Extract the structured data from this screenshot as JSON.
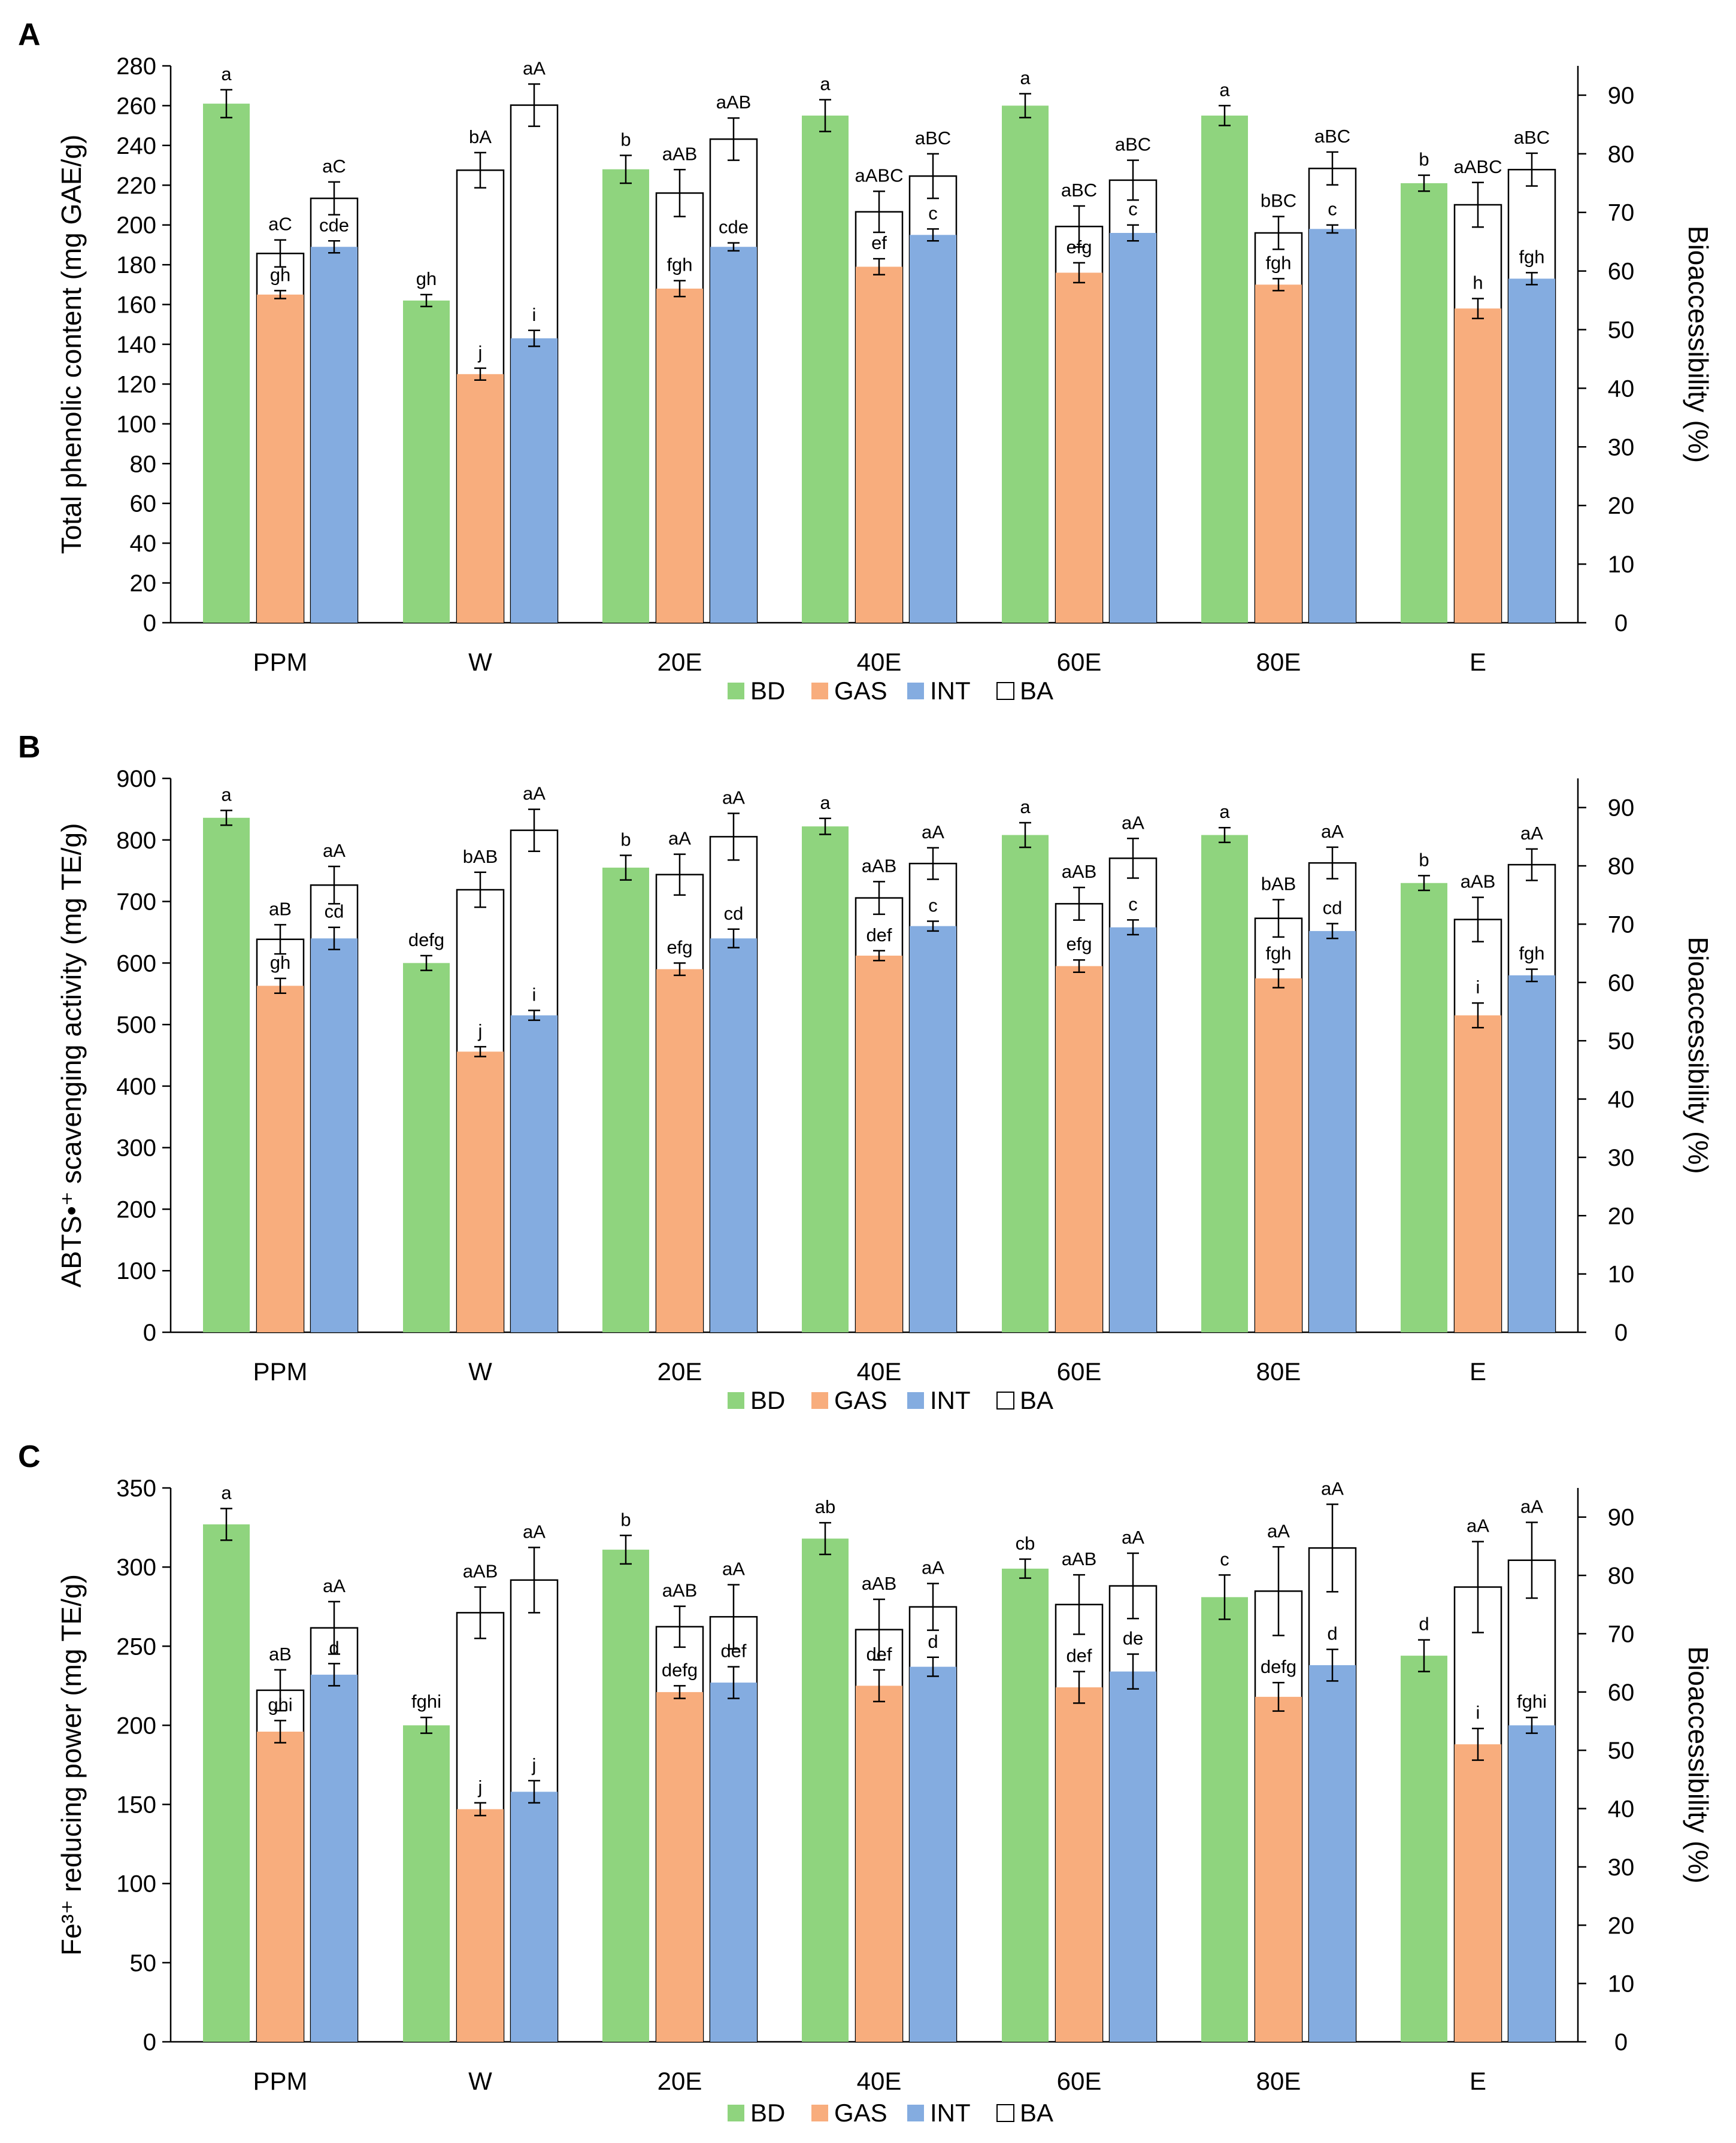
{
  "colors": {
    "BD": "#8fd47e",
    "GAS": "#f8ad7d",
    "INT": "#84ace0",
    "BA": "#ffffff"
  },
  "legend": [
    "BD",
    "GAS",
    "INT",
    "BA"
  ],
  "chart_data": [
    {
      "type": "bar",
      "panel": "A",
      "ylabel": "Total phenolic content (mg GAE/g)",
      "y2label": "Bioaccessibility (%)",
      "categories": [
        "PPM",
        "W",
        "20E",
        "40E",
        "60E",
        "80E",
        "E"
      ],
      "ylim": [
        0,
        280
      ],
      "yticks": [
        "0",
        "20",
        "40",
        "60",
        "80",
        "100",
        "120",
        "140",
        "160",
        "180",
        "200",
        "220",
        "240",
        "260",
        "280"
      ],
      "y2lim": [
        0,
        95
      ],
      "y2ticks": [
        "0",
        "10",
        "20",
        "30",
        "40",
        "50",
        "60",
        "70",
        "80",
        "90"
      ],
      "series": [
        {
          "name": "BD",
          "axis": "left",
          "values": [
            261,
            162,
            228,
            255,
            260,
            255,
            221
          ],
          "errors": [
            7,
            3,
            7,
            8,
            6,
            5,
            4
          ],
          "labels": [
            "a",
            "gh",
            "b",
            "a",
            "a",
            "a",
            "b"
          ]
        },
        {
          "name": "GAS",
          "axis": "left",
          "values": [
            165,
            125,
            168,
            179,
            176,
            170,
            158
          ],
          "errors": [
            2,
            3,
            4,
            4,
            5,
            3,
            5
          ],
          "labels": [
            "gh",
            "j",
            "fgh",
            "ef",
            "efg",
            "fgh",
            "h"
          ]
        },
        {
          "name": "INT",
          "axis": "left",
          "values": [
            189,
            143,
            189,
            195,
            196,
            198,
            173
          ],
          "errors": [
            3,
            4,
            2,
            3,
            4,
            2,
            3
          ],
          "labels": [
            "cde",
            "i",
            "cde",
            "c",
            "c",
            "c",
            "fgh"
          ]
        },
        {
          "name": "BA (GAS)",
          "axis": "right",
          "values": [
            63,
            77.2,
            73.3,
            70.1,
            67.6,
            66.5,
            71.3
          ],
          "errors": [
            2.3,
            3,
            4,
            3.5,
            3.5,
            2.8,
            3.8
          ],
          "labels": [
            "aC",
            "bA",
            "aAB",
            "aABC",
            "aBC",
            "bBC",
            "aABC"
          ]
        },
        {
          "name": "BA (INT)",
          "axis": "right",
          "values": [
            72.4,
            88.3,
            82.5,
            76.2,
            75.5,
            77.5,
            77.3
          ],
          "errors": [
            2.8,
            3.6,
            3.6,
            3.8,
            3.4,
            2.8,
            2.8
          ],
          "labels": [
            "aC",
            "aA",
            "aAB",
            "aBC",
            "aBC",
            "aBC",
            "aBC"
          ]
        }
      ]
    },
    {
      "type": "bar",
      "panel": "B",
      "ylabel": "ABTS•⁺ scavenging activity  (mg TE/g)",
      "y2label": "Bioaccessibility (%)",
      "categories": [
        "PPM",
        "W",
        "20E",
        "40E",
        "60E",
        "80E",
        "E"
      ],
      "ylim": [
        0,
        900
      ],
      "yticks": [
        "0",
        "100",
        "200",
        "300",
        "400",
        "500",
        "600",
        "700",
        "800",
        "900"
      ],
      "y2lim": [
        0,
        95
      ],
      "y2ticks": [
        "0",
        "10",
        "20",
        "30",
        "40",
        "50",
        "60",
        "70",
        "80",
        "90"
      ],
      "series": [
        {
          "name": "BD",
          "axis": "left",
          "values": [
            836,
            600,
            755,
            822,
            808,
            808,
            730
          ],
          "errors": [
            12,
            12,
            20,
            13,
            20,
            12,
            12
          ],
          "labels": [
            "a",
            "defg",
            "b",
            "a",
            "a",
            "a",
            "b"
          ]
        },
        {
          "name": "GAS",
          "axis": "left",
          "values": [
            563,
            456,
            590,
            612,
            595,
            575,
            515
          ],
          "errors": [
            12,
            8,
            10,
            8,
            10,
            15,
            20
          ],
          "labels": [
            "gh",
            "j",
            "efg",
            "def",
            "efg",
            "fgh",
            "i"
          ]
        },
        {
          "name": "INT",
          "axis": "left",
          "values": [
            640,
            515,
            640,
            660,
            658,
            652,
            580
          ],
          "errors": [
            18,
            8,
            15,
            8,
            12,
            12,
            10
          ],
          "labels": [
            "cd",
            "i",
            "cd",
            "c",
            "c",
            "cd",
            "fgh"
          ]
        },
        {
          "name": "BA (GAS)",
          "axis": "right",
          "values": [
            67.4,
            75.9,
            78.5,
            74.5,
            73.5,
            71,
            70.8
          ],
          "errors": [
            2.5,
            3,
            3.5,
            2.8,
            2.8,
            3.2,
            3.8
          ],
          "labels": [
            "aB",
            "bAB",
            "aA",
            "aAB",
            "aAB",
            "bAB",
            "aAB"
          ]
        },
        {
          "name": "BA (INT)",
          "axis": "right",
          "values": [
            76.7,
            86.1,
            85,
            80.4,
            81.3,
            80.5,
            80.2
          ],
          "errors": [
            3.2,
            3.6,
            4,
            2.7,
            3.4,
            2.7,
            2.7
          ],
          "labels": [
            "aA",
            "aA",
            "aA",
            "aA",
            "aA",
            "aA",
            "aA"
          ]
        }
      ]
    },
    {
      "type": "bar",
      "panel": "C",
      "ylabel": "Fe³⁺ reducing power (mg TE/g)",
      "y2label": "Bioaccessibility (%)",
      "categories": [
        "PPM",
        "W",
        "20E",
        "40E",
        "60E",
        "80E",
        "E"
      ],
      "ylim": [
        0,
        350
      ],
      "yticks": [
        "0",
        "50",
        "100",
        "150",
        "200",
        "250",
        "300",
        "350"
      ],
      "y2lim": [
        0,
        95
      ],
      "y2ticks": [
        "0",
        "10",
        "20",
        "30",
        "40",
        "50",
        "60",
        "70",
        "80",
        "90"
      ],
      "series": [
        {
          "name": "BD",
          "axis": "left",
          "values": [
            327,
            200,
            311,
            318,
            299,
            281,
            244
          ],
          "errors": [
            10,
            5,
            9,
            10,
            6,
            14,
            10
          ],
          "labels": [
            "a",
            "fghi",
            "b",
            "ab",
            "cb",
            "c",
            "d"
          ]
        },
        {
          "name": "GAS",
          "axis": "left",
          "values": [
            196,
            147,
            221,
            225,
            224,
            218,
            188
          ],
          "errors": [
            7,
            4,
            4,
            10,
            10,
            9,
            10
          ],
          "labels": [
            "ghi",
            "j",
            "defg",
            "def",
            "def",
            "defg",
            "i"
          ]
        },
        {
          "name": "INT",
          "axis": "left",
          "values": [
            232,
            158,
            227,
            237,
            234,
            238,
            200
          ],
          "errors": [
            7,
            7,
            10,
            6,
            11,
            10,
            5
          ],
          "labels": [
            "d",
            "j",
            "def",
            "d",
            "de",
            "d",
            "fghi"
          ]
        },
        {
          "name": "BA (GAS)",
          "axis": "right",
          "values": [
            60.3,
            73.6,
            71.2,
            70.7,
            75,
            77.3,
            78
          ],
          "errors": [
            3.5,
            4.4,
            3.5,
            5.2,
            5.1,
            7.6,
            7.8
          ],
          "labels": [
            "aB",
            "aAB",
            "aAB",
            "aAB",
            "aAB",
            "aA",
            "aA"
          ]
        },
        {
          "name": "BA (INT)",
          "axis": "right",
          "values": [
            71,
            79.2,
            72.9,
            74.6,
            78.2,
            84.7,
            82.6
          ],
          "errors": [
            4.5,
            5.6,
            5.5,
            4,
            5.6,
            7.5,
            6.5
          ],
          "labels": [
            "aA",
            "aA",
            "aA",
            "aA",
            "aA",
            "aA",
            "aA"
          ]
        }
      ]
    }
  ]
}
